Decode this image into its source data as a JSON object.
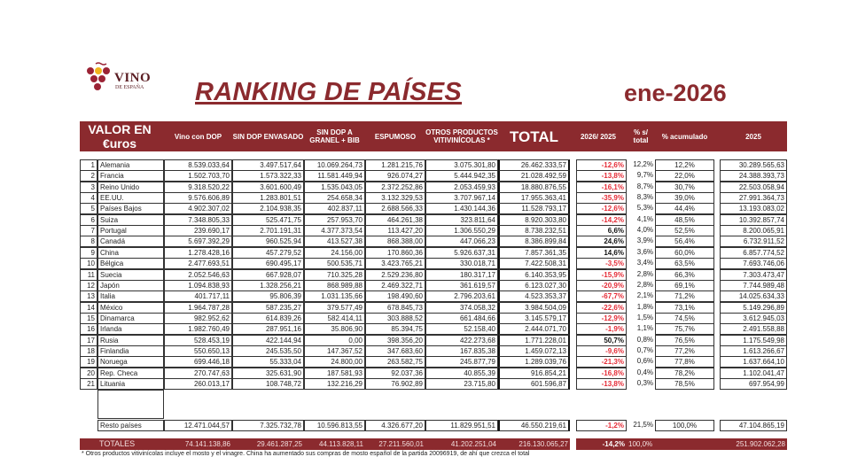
{
  "logo": {
    "brand": "VINO",
    "sub": "DE ESPAÑA",
    "colors": {
      "grape": "#9b2335",
      "accent": "#f2b51c"
    }
  },
  "title": "RANKING DE PAÍSES",
  "period": "ene-2026",
  "colors": {
    "header": "#8b2a2e",
    "negative": "#e52b36"
  },
  "headers": [
    "VALOR EN €uros",
    "Vino con DOP",
    "SIN DOP ENVASADO",
    "SIN DOP A GRANEL + BIB",
    "ESPUMOSO",
    "OTROS PRODUCTOS VITIVINÍCOLAS *",
    "TOTAL",
    "2026/ 2025",
    "% s/ total",
    "% acumulado",
    "2025"
  ],
  "rows": [
    [
      "1",
      "Alemania",
      "8.539.033,64",
      "3.497.517,64",
      "10.069.264,73",
      "1.281.215,76",
      "3.075.301,80",
      "26.462.333,57",
      "-12,6%",
      "12,2%",
      "12,2%",
      "30.289.565,63"
    ],
    [
      "2",
      "Francia",
      "1.502.703,70",
      "1.573.322,33",
      "11.581.449,94",
      "926.074,27",
      "5.444.942,35",
      "21.028.492,59",
      "-13,8%",
      "9,7%",
      "22,0%",
      "24.388.393,73"
    ],
    [
      "3",
      "Reino Unido",
      "9.318.520,22",
      "3.601.600,49",
      "1.535.043,05",
      "2.372.252,86",
      "2.053.459,93",
      "18.880.876,55",
      "-16,1%",
      "8,7%",
      "30,7%",
      "22.503.058,94"
    ],
    [
      "4",
      "EE.UU.",
      "9.576.606,89",
      "1.283.801,51",
      "254.658,34",
      "3.132.329,53",
      "3.707.967,14",
      "17.955.363,41",
      "-35,9%",
      "8,3%",
      "39,0%",
      "27.991.364,73"
    ],
    [
      "5",
      "Países Bajos",
      "4.902.307,02",
      "2.104.938,35",
      "402.837,11",
      "2.688.566,33",
      "1.430.144,36",
      "11.528.793,17",
      "-12,6%",
      "5,3%",
      "44,4%",
      "13.193.083,02"
    ],
    [
      "6",
      "Suiza",
      "7.348.805,33",
      "525.471,75",
      "257.953,70",
      "464.261,38",
      "323.811,64",
      "8.920.303,80",
      "-14,2%",
      "4,1%",
      "48,5%",
      "10.392.857,74"
    ],
    [
      "7",
      "Portugal",
      "239.690,17",
      "2.701.191,31",
      "4.377.373,54",
      "113.427,20",
      "1.306.550,29",
      "8.738.232,51",
      "6,6%",
      "4,0%",
      "52,5%",
      "8.200.065,91"
    ],
    [
      "8",
      "Canadá",
      "5.697.392,29",
      "960.525,94",
      "413.527,38",
      "868.388,00",
      "447.066,23",
      "8.386.899,84",
      "24,6%",
      "3,9%",
      "56,4%",
      "6.732.911,52"
    ],
    [
      "9",
      "China",
      "1.278.428,16",
      "457.279,52",
      "24.156,00",
      "170.860,36",
      "5.926.637,31",
      "7.857.361,35",
      "14,6%",
      "3,6%",
      "60,0%",
      "6.857.774,52"
    ],
    [
      "10",
      "Bélgica",
      "2.477.693,51",
      "690.495,17",
      "500.535,71",
      "3.423.765,21",
      "330.018,71",
      "7.422.508,31",
      "-3,5%",
      "3,4%",
      "63,5%",
      "7.693.746,06"
    ],
    [
      "11",
      "Suecia",
      "2.052.546,63",
      "667.928,07",
      "710.325,28",
      "2.529.236,80",
      "180.317,17",
      "6.140.353,95",
      "-15,9%",
      "2,8%",
      "66,3%",
      "7.303.473,47"
    ],
    [
      "12",
      "Japón",
      "1.094.838,93",
      "1.328.256,21",
      "868.989,88",
      "2.469.322,71",
      "361.619,57",
      "6.123.027,30",
      "-20,9%",
      "2,8%",
      "69,1%",
      "7.744.989,48"
    ],
    [
      "13",
      "Italia",
      "401.717,11",
      "95.806,39",
      "1.031.135,66",
      "198.490,60",
      "2.796.203,61",
      "4.523.353,37",
      "-67,7%",
      "2,1%",
      "71,2%",
      "14.025.634,33"
    ],
    [
      "14",
      "México",
      "1.964.787,28",
      "587.235,27",
      "379.577,49",
      "678.845,73",
      "374.058,32",
      "3.984.504,09",
      "-22,6%",
      "1,8%",
      "73,1%",
      "5.149.296,89"
    ],
    [
      "15",
      "Dinamarca",
      "982.952,62",
      "614.839,26",
      "582.414,11",
      "303.888,52",
      "661.484,66",
      "3.145.579,17",
      "-12,9%",
      "1,5%",
      "74,5%",
      "3.612.945,03"
    ],
    [
      "16",
      "Irlanda",
      "1.982.760,49",
      "287.951,16",
      "35.806,90",
      "85.394,75",
      "52.158,40",
      "2.444.071,70",
      "-1,9%",
      "1,1%",
      "75,7%",
      "2.491.558,88"
    ],
    [
      "17",
      "Rusia",
      "528.453,19",
      "422.144,94",
      "0,00",
      "398.356,20",
      "422.273,68",
      "1.771.228,01",
      "50,7%",
      "0,8%",
      "76,5%",
      "1.175.549,98"
    ],
    [
      "18",
      "Finlandia",
      "550.650,13",
      "245.535,50",
      "147.367,52",
      "347.683,60",
      "167.835,38",
      "1.459.072,13",
      "-9,6%",
      "0,7%",
      "77,2%",
      "1.613.266,67"
    ],
    [
      "19",
      "Noruega",
      "699.446,18",
      "55.333,04",
      "24.800,00",
      "263.582,75",
      "245.877,79",
      "1.289.039,76",
      "-21,3%",
      "0,6%",
      "77,8%",
      "1.637.664,10"
    ],
    [
      "20",
      "Rep. Checa",
      "270.747,63",
      "325.631,90",
      "187.581,93",
      "92.037,36",
      "40.855,39",
      "916.854,21",
      "-16,8%",
      "0,4%",
      "78,2%",
      "1.102.041,47"
    ],
    [
      "21",
      "Lituania",
      "260.013,17",
      "108.748,72",
      "132.216,29",
      "76.902,89",
      "23.715,80",
      "601.596,87",
      "-13,8%",
      "0,3%",
      "78,5%",
      "697.954,99"
    ]
  ],
  "rest": [
    "",
    "Resto países",
    "12.471.044,57",
    "7.325.732,78",
    "10.596.813,55",
    "4.326.677,20",
    "11.829.951,51",
    "46.550.219,61",
    "-1,2%",
    "21,5%",
    "100,0%",
    "47.104.865,19"
  ],
  "totals": [
    "",
    "TOTALES",
    "74.141.138,86",
    "29.461.287,25",
    "44.113.828,11",
    "27.211.560,01",
    "41.202.251,04",
    "216.130.065,27",
    "-14,2%",
    "100,0%",
    "",
    "251.902.062,28"
  ],
  "footnote": "* Otros productos vitivinícolas incluye el mosto y el vinagre. China ha aumentado sus compras de mosto español de la partida 20096919, de ahí que crezca el total"
}
